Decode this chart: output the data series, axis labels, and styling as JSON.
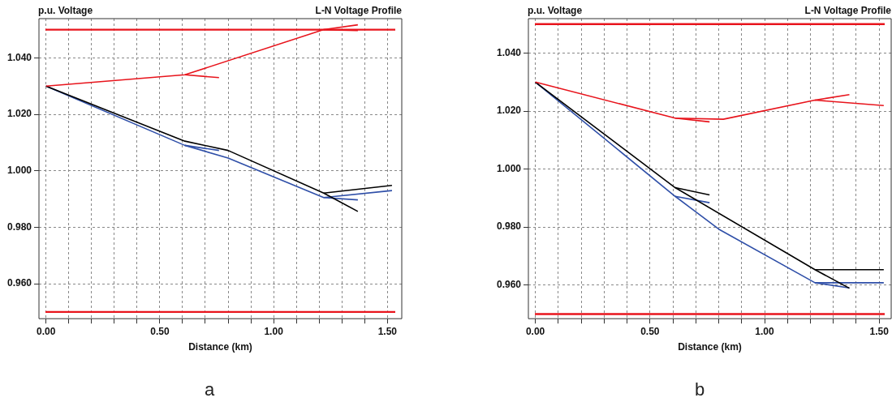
{
  "chart_data": [
    {
      "type": "line",
      "title": "L-N Voltage Profile",
      "ylabel": "p.u. Voltage",
      "xlabel": "Distance (km)",
      "annotations": [
        "a"
      ],
      "grid": true,
      "legend": false,
      "marker": "none",
      "line_style": "solid",
      "xlim": [
        -0.031,
        1.563
      ],
      "ylim": [
        0.9476,
        1.0539
      ],
      "xticks": [
        {
          "value": 0,
          "label": "0.00"
        },
        {
          "value": 0.1,
          "label": null
        },
        {
          "value": 0.2,
          "label": null
        },
        {
          "value": 0.3,
          "label": null
        },
        {
          "value": 0.4,
          "label": null
        },
        {
          "value": 0.5,
          "label": "0.50"
        },
        {
          "value": 0.6,
          "label": null
        },
        {
          "value": 0.7,
          "label": null
        },
        {
          "value": 0.8,
          "label": null
        },
        {
          "value": 0.9,
          "label": null
        },
        {
          "value": 1,
          "label": "1.00"
        },
        {
          "value": 1.1,
          "label": null
        },
        {
          "value": 1.2,
          "label": null
        },
        {
          "value": 1.3,
          "label": null
        },
        {
          "value": 1.4,
          "label": null
        },
        {
          "value": 1.5,
          "label": "1.50"
        }
      ],
      "yticks": [
        {
          "value": 0.96,
          "label": "0.960"
        },
        {
          "value": 0.98,
          "label": "0.980"
        },
        {
          "value": 1,
          "label": "1.000"
        },
        {
          "value": 1.02,
          "label": "1.020"
        },
        {
          "value": 1.04,
          "label": "1.040"
        }
      ],
      "ref_lines": [
        {
          "axis": "y",
          "value": 1.05,
          "color": "#e8141c"
        },
        {
          "axis": "y",
          "value": 0.95,
          "color": "#e8141c"
        }
      ],
      "series": [
        {
          "color": "#e8141c",
          "x": [
            0,
            0.61,
            1.22,
            1.37
          ],
          "values": [
            1.03,
            1.034,
            1.05,
            1.0517
          ]
        },
        {
          "color": "#e8141c",
          "x": [
            1.22,
            1.37
          ],
          "values": [
            1.05,
            1.0497
          ]
        },
        {
          "color": "#e8141c",
          "x": [
            0.61,
            0.76
          ],
          "values": [
            1.034,
            1.033
          ]
        },
        {
          "color": "#000000",
          "x": [
            0,
            0.61,
            0.8,
            1.22,
            1.37
          ],
          "values": [
            1.03,
            1.0105,
            1.0072,
            0.9921,
            0.9856
          ]
        },
        {
          "color": "#000000",
          "x": [
            1.22,
            1.52
          ],
          "values": [
            0.9921,
            0.9948
          ]
        },
        {
          "color": "#2f4fa8",
          "x": [
            0,
            0.61,
            0.8,
            1.22,
            1.52
          ],
          "values": [
            1.03,
            1.009,
            1.0045,
            0.9905,
            0.993
          ]
        },
        {
          "color": "#2f4fa8",
          "x": [
            0.61,
            0.76
          ],
          "values": [
            1.009,
            1.0072
          ]
        },
        {
          "color": "#2f4fa8",
          "x": [
            1.22,
            1.37
          ],
          "values": [
            0.9905,
            0.9897
          ]
        }
      ]
    },
    {
      "type": "line",
      "title": "L-N Voltage Profile",
      "ylabel": "p.u. Voltage",
      "xlabel": "Distance (km)",
      "annotations": [
        "b"
      ],
      "grid": true,
      "legend": false,
      "marker": "none",
      "line_style": "solid",
      "xlim": [
        -0.0305,
        1.5524
      ],
      "ylim": [
        0.9484,
        1.0519
      ],
      "xticks": [
        {
          "value": 0,
          "label": "0.00"
        },
        {
          "value": 0.1,
          "label": null
        },
        {
          "value": 0.2,
          "label": null
        },
        {
          "value": 0.3,
          "label": null
        },
        {
          "value": 0.4,
          "label": null
        },
        {
          "value": 0.5,
          "label": "0.50"
        },
        {
          "value": 0.6,
          "label": null
        },
        {
          "value": 0.7,
          "label": null
        },
        {
          "value": 0.8,
          "label": null
        },
        {
          "value": 0.9,
          "label": null
        },
        {
          "value": 1,
          "label": "1.00"
        },
        {
          "value": 1.1,
          "label": null
        },
        {
          "value": 1.2,
          "label": null
        },
        {
          "value": 1.3,
          "label": null
        },
        {
          "value": 1.4,
          "label": null
        },
        {
          "value": 1.5,
          "label": "1.50"
        }
      ],
      "yticks": [
        {
          "value": 0.96,
          "label": "0.960"
        },
        {
          "value": 0.98,
          "label": "0.980"
        },
        {
          "value": 1,
          "label": "1.000"
        },
        {
          "value": 1.02,
          "label": "1.020"
        },
        {
          "value": 1.04,
          "label": "1.040"
        }
      ],
      "ref_lines": [
        {
          "axis": "y",
          "value": 1.05,
          "color": "#e8141c"
        },
        {
          "axis": "y",
          "value": 0.95,
          "color": "#e8141c"
        }
      ],
      "series": [
        {
          "color": "#e8141c",
          "x": [
            0,
            0.61,
            0.82,
            1.22,
            1.52
          ],
          "values": [
            1.03,
            1.0176,
            1.0172,
            1.0238,
            1.0219
          ]
        },
        {
          "color": "#e8141c",
          "x": [
            0.61,
            0.76
          ],
          "values": [
            1.0176,
            1.0163
          ]
        },
        {
          "color": "#e8141c",
          "x": [
            1.22,
            1.37
          ],
          "values": [
            1.0238,
            1.0257
          ]
        },
        {
          "color": "#000000",
          "x": [
            0,
            0.61,
            1.22,
            1.37
          ],
          "values": [
            1.03,
            0.9936,
            0.9653,
            0.9589
          ]
        },
        {
          "color": "#000000",
          "x": [
            0.61,
            0.76
          ],
          "values": [
            0.9936,
            0.9911
          ]
        },
        {
          "color": "#000000",
          "x": [
            1.22,
            1.52
          ],
          "values": [
            0.9653,
            0.9653
          ]
        },
        {
          "color": "#2f4fa8",
          "x": [
            0,
            0.61,
            0.8,
            1.22,
            1.52
          ],
          "values": [
            1.03,
            0.9906,
            0.9793,
            0.9608,
            0.9608
          ]
        },
        {
          "color": "#2f4fa8",
          "x": [
            0.61,
            0.76
          ],
          "values": [
            0.9906,
            0.9884
          ]
        },
        {
          "color": "#2f4fa8",
          "x": [
            1.22,
            1.37
          ],
          "values": [
            0.9608,
            0.959
          ]
        }
      ]
    }
  ]
}
